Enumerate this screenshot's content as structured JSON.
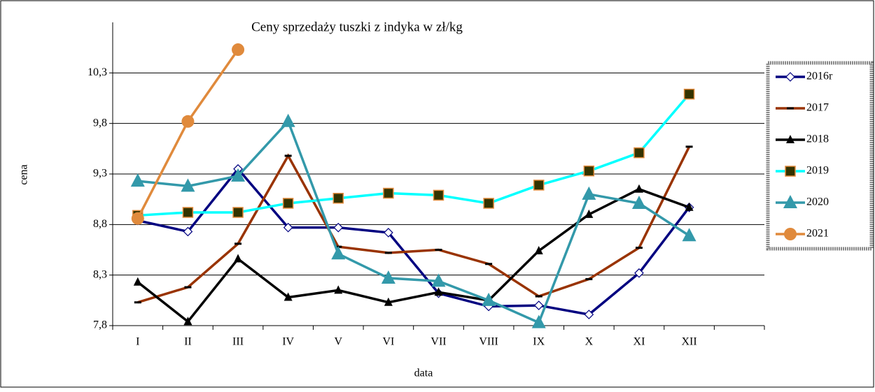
{
  "chart_data": {
    "type": "line",
    "title": "Ceny sprzedaży tuszki z indyka w zł/kg",
    "x_label": "data",
    "y_label": "cena",
    "categories": [
      "I",
      "II",
      "III",
      "IV",
      "V",
      "VI",
      "VII",
      "VIII",
      "IX",
      "X",
      "XI",
      "XII",
      null
    ],
    "ylim": [
      7.8,
      10.8
    ],
    "yticks": [
      {
        "value": 7.8,
        "label": "7,8"
      },
      {
        "value": 8.3,
        "label": "8,3"
      },
      {
        "value": 8.8,
        "label": "8,8"
      },
      {
        "value": 9.3,
        "label": "9,3"
      },
      {
        "value": 9.8,
        "label": "9,8"
      },
      {
        "value": 10.3,
        "label": "10,3"
      }
    ],
    "grid": true,
    "legend": "right",
    "series": [
      {
        "name": "2016r",
        "color": "#000080",
        "marker": "diamond",
        "values": [
          8.84,
          8.73,
          9.35,
          8.77,
          8.77,
          8.72,
          8.12,
          7.99,
          8.0,
          7.91,
          8.32,
          8.97,
          null
        ]
      },
      {
        "name": "2017",
        "color": "#993300",
        "marker": "dash",
        "values": [
          8.03,
          8.18,
          8.61,
          9.48,
          8.58,
          8.52,
          8.55,
          8.41,
          8.09,
          8.26,
          8.57,
          9.57,
          null
        ]
      },
      {
        "name": "2018",
        "color": "#000000",
        "marker": "triangle",
        "values": [
          8.23,
          7.84,
          8.46,
          8.08,
          8.15,
          8.03,
          8.13,
          8.05,
          8.54,
          8.9,
          9.15,
          8.97,
          null
        ]
      },
      {
        "name": "2019",
        "color": "#00ffff",
        "marker": "square",
        "values": [
          8.89,
          8.92,
          8.92,
          9.01,
          9.06,
          9.11,
          9.09,
          9.01,
          9.19,
          9.33,
          9.51,
          10.09,
          null
        ]
      },
      {
        "name": "2020",
        "color": "#3399aa",
        "marker": "bigtriangle",
        "values": [
          9.23,
          9.18,
          9.28,
          9.82,
          8.51,
          8.27,
          8.24,
          8.05,
          7.83,
          9.1,
          9.01,
          8.69,
          null
        ]
      },
      {
        "name": "2021",
        "color": "#e08a3c",
        "marker": "circle",
        "values": [
          8.86,
          9.82,
          10.53,
          null,
          null,
          null,
          null,
          null,
          null,
          null,
          null,
          null,
          null
        ]
      }
    ]
  }
}
